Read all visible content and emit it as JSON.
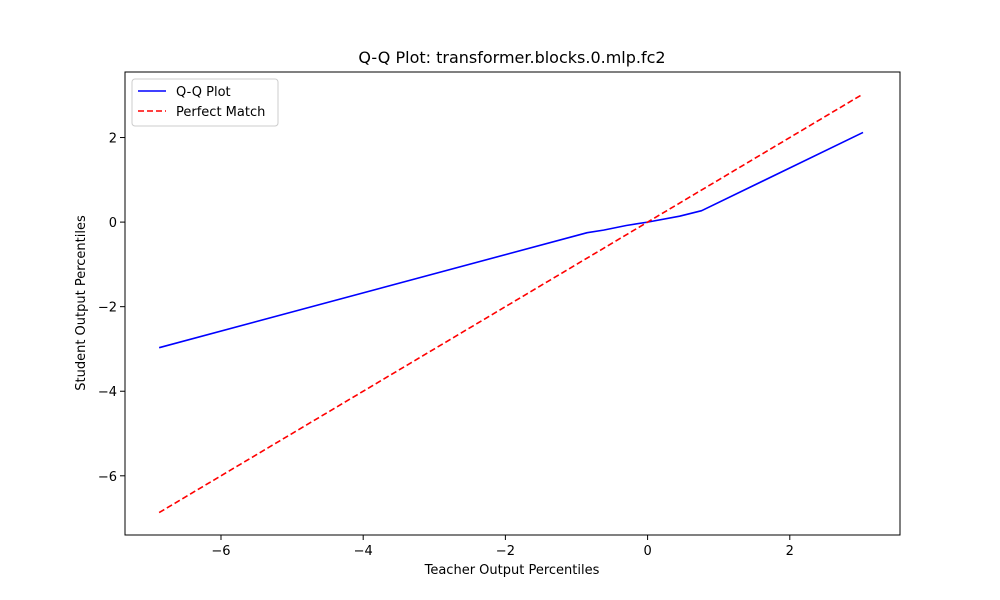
{
  "chart_data": {
    "type": "line",
    "title": "Q-Q Plot: transformer.blocks.0.mlp.fc2",
    "xlabel": "Teacher Output Percentiles",
    "ylabel": "Student Output Percentiles",
    "xlim": [
      -7.35,
      3.55
    ],
    "ylim": [
      -7.4,
      3.55
    ],
    "xticks": [
      -6,
      -4,
      -2,
      0,
      2
    ],
    "yticks": [
      -6,
      -4,
      -2,
      0,
      2
    ],
    "tick_labels_x": [
      "−6",
      "−4",
      "−2",
      "0",
      "2"
    ],
    "tick_labels_y": [
      "−6",
      "−4",
      "−2",
      "0",
      "2"
    ],
    "grid": false,
    "legend_position": "top-left",
    "series": [
      {
        "name": "Q-Q Plot",
        "color": "#0000ff",
        "style": "solid",
        "x": [
          -6.87,
          -0.85,
          -0.62,
          -0.3,
          0.0,
          0.45,
          0.76,
          3.03
        ],
        "y": [
          -2.97,
          -0.25,
          -0.19,
          -0.08,
          0.0,
          0.14,
          0.27,
          2.12
        ]
      },
      {
        "name": "Perfect Match",
        "color": "#ff0000",
        "style": "dashed",
        "x": [
          -6.87,
          3.03
        ],
        "y": [
          -6.87,
          3.03
        ]
      }
    ]
  }
}
